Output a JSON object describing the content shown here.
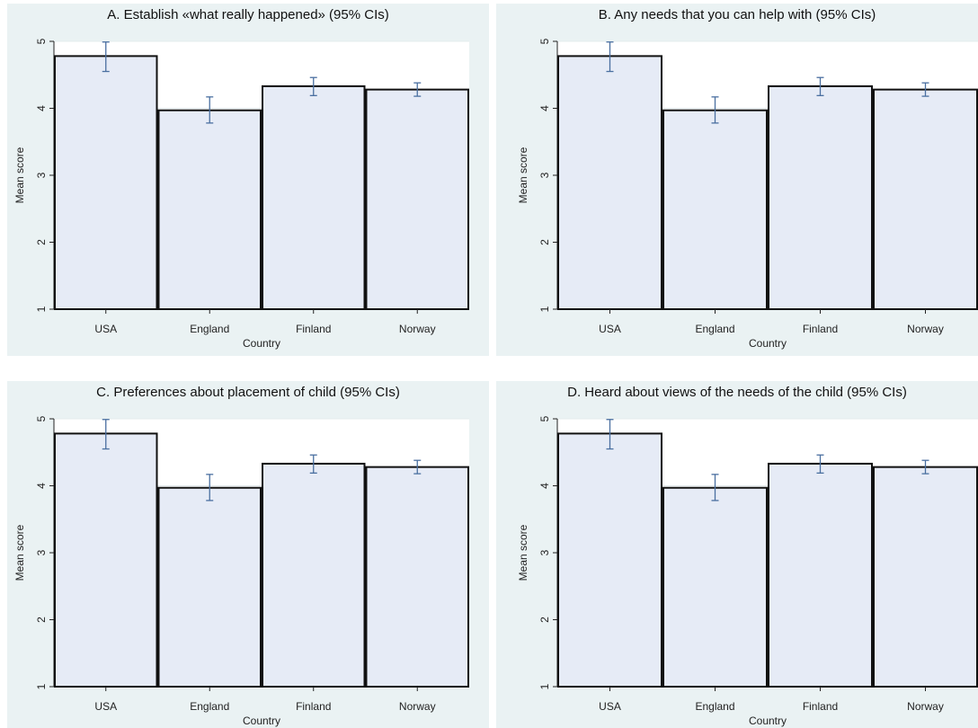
{
  "chart_data": [
    {
      "type": "bar",
      "title": "A. Establish «what really happened» (95% CIs)",
      "xlabel": "Country",
      "ylabel": "Mean score",
      "categories": [
        "USA",
        "England",
        "Finland",
        "Norway"
      ],
      "values": [
        4.78,
        3.97,
        4.33,
        4.28
      ],
      "ci_low": [
        4.55,
        3.78,
        4.19,
        4.18
      ],
      "ci_high": [
        4.99,
        4.17,
        4.46,
        4.38
      ],
      "ylim": [
        1,
        5
      ],
      "yticks": [
        "1",
        "2",
        "3",
        "4",
        "5"
      ],
      "grid": true,
      "bar_color": "#e6ebf6",
      "errorbar_color": "#4a6fa0"
    },
    {
      "type": "bar",
      "title": "B. Any needs that you can help with (95% CIs)",
      "xlabel": "Country",
      "ylabel": "Mean score",
      "categories": [
        "USA",
        "England",
        "Finland",
        "Norway"
      ],
      "values": [
        4.78,
        3.97,
        4.33,
        4.28
      ],
      "ci_low": [
        4.55,
        3.78,
        4.19,
        4.18
      ],
      "ci_high": [
        4.99,
        4.17,
        4.46,
        4.38
      ],
      "ylim": [
        1,
        5
      ],
      "yticks": [
        "1",
        "2",
        "3",
        "4",
        "5"
      ],
      "grid": true,
      "bar_color": "#e6ebf6",
      "errorbar_color": "#4a6fa0"
    },
    {
      "type": "bar",
      "title": "C. Preferences about placement of child (95% CIs)",
      "xlabel": "Country",
      "ylabel": "Mean score",
      "categories": [
        "USA",
        "England",
        "Finland",
        "Norway"
      ],
      "values": [
        4.78,
        3.97,
        4.33,
        4.28
      ],
      "ci_low": [
        4.55,
        3.78,
        4.19,
        4.18
      ],
      "ci_high": [
        4.99,
        4.17,
        4.46,
        4.38
      ],
      "ylim": [
        1,
        5
      ],
      "yticks": [
        "1",
        "2",
        "3",
        "4",
        "5"
      ],
      "grid": true,
      "bar_color": "#e6ebf6",
      "errorbar_color": "#4a6fa0"
    },
    {
      "type": "bar",
      "title": "D. Heard about views of the needs of the child (95% CIs)",
      "xlabel": "Country",
      "ylabel": "Mean score",
      "categories": [
        "USA",
        "England",
        "Finland",
        "Norway"
      ],
      "values": [
        4.78,
        3.97,
        4.33,
        4.28
      ],
      "ci_low": [
        4.55,
        3.78,
        4.19,
        4.18
      ],
      "ci_high": [
        4.99,
        4.17,
        4.46,
        4.38
      ],
      "ylim": [
        1,
        5
      ],
      "yticks": [
        "1",
        "2",
        "3",
        "4",
        "5"
      ],
      "grid": true,
      "bar_color": "#e6ebf6",
      "errorbar_color": "#4a6fa0"
    }
  ]
}
